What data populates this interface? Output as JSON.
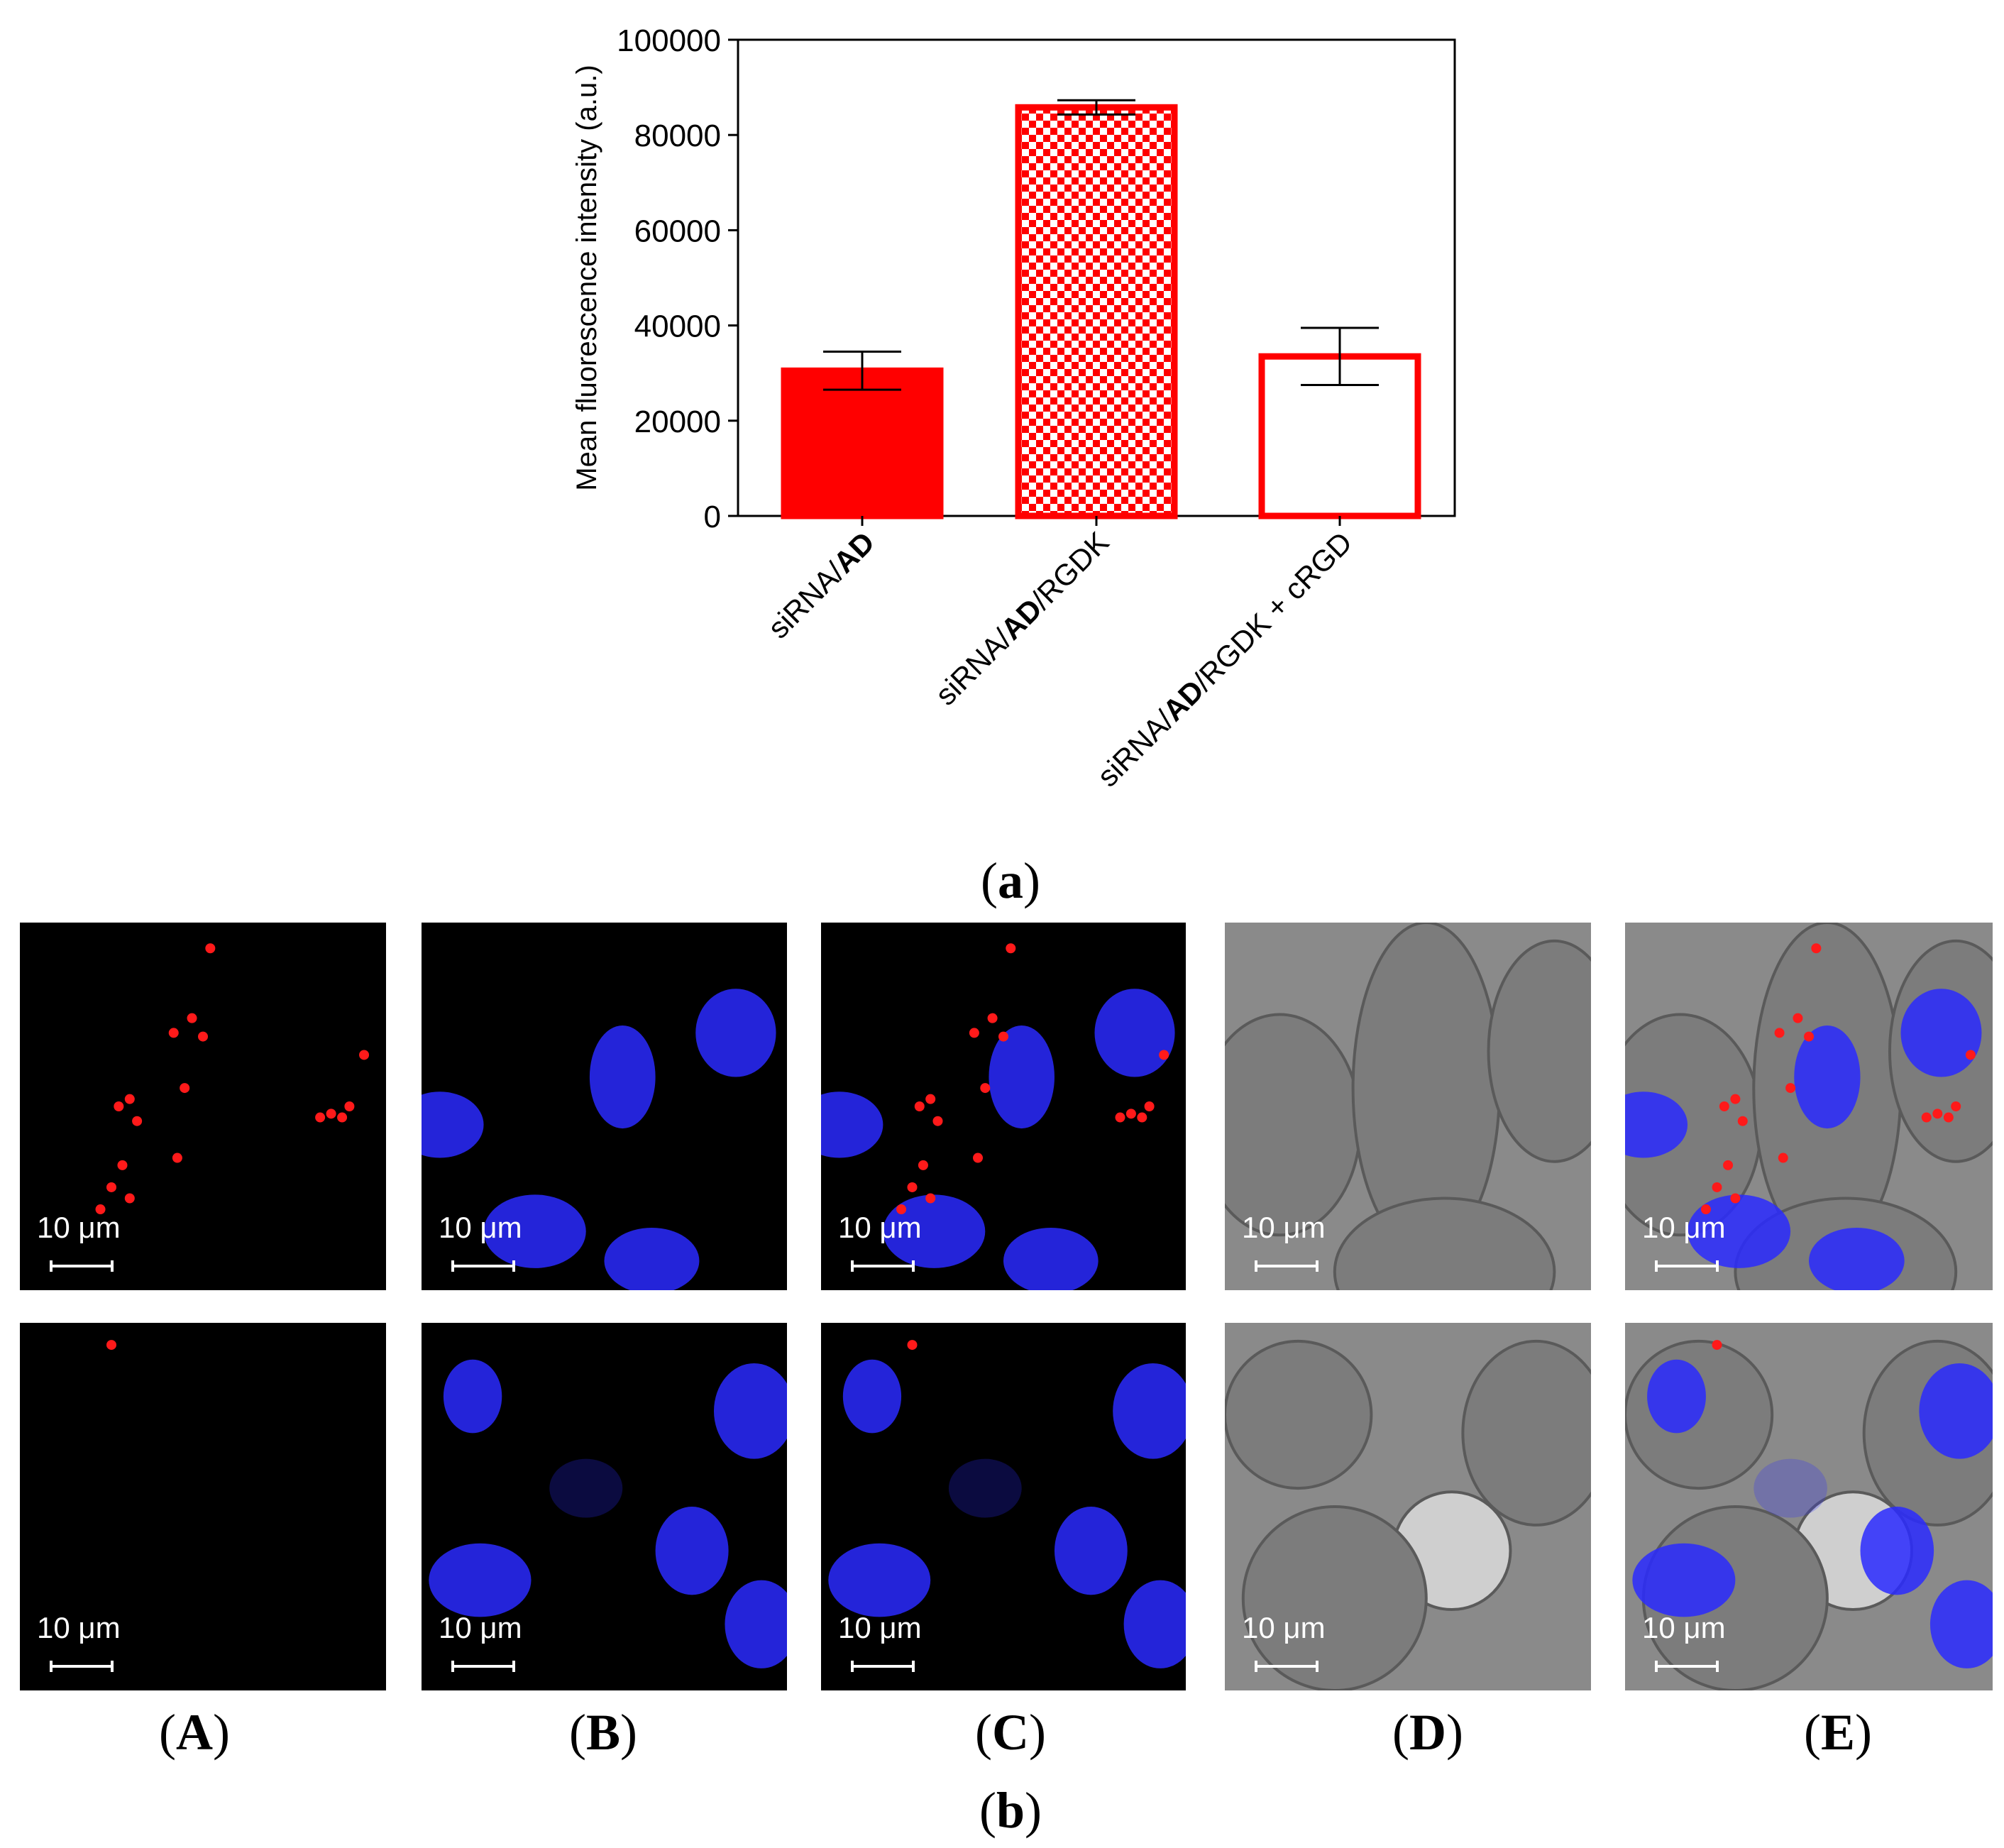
{
  "chart_data": {
    "type": "bar",
    "ylabel": "Mean fluorescence intensity (a.u.)",
    "ylim": [
      0,
      100000
    ],
    "yticks": [
      "0",
      "20000",
      "40000",
      "60000",
      "80000",
      "100000"
    ],
    "categories": [
      {
        "pre": "siRNA/",
        "bold": "AD",
        "post": ""
      },
      {
        "pre": "siRNA/",
        "bold": "AD",
        "post": "/RGDK"
      },
      {
        "pre": "siRNA/",
        "bold": "AD",
        "post": "/RGDK + cRGD"
      }
    ],
    "values": [
      30500,
      85800,
      33500
    ],
    "errors": [
      4000,
      1500,
      6000
    ],
    "fills": [
      "solid",
      "checker",
      "hollow"
    ],
    "bar_color": "#ff0000"
  },
  "captions": {
    "part_a": {
      "open": "(",
      "letter": "a",
      "close": ")"
    },
    "part_b": {
      "open": "(",
      "letter": "b",
      "close": ")"
    },
    "panels": [
      {
        "open": "(",
        "letter": "A",
        "close": ")"
      },
      {
        "open": "(",
        "letter": "B",
        "close": ")"
      },
      {
        "open": "(",
        "letter": "C",
        "close": ")"
      },
      {
        "open": "(",
        "letter": "D",
        "close": ")"
      },
      {
        "open": "(",
        "letter": "E",
        "close": ")"
      }
    ]
  },
  "scale_label": "10 μm",
  "colors": {
    "nucleus": "#2a2aff",
    "spots": "#ff1a1a",
    "brightfield": "#8a8a8a"
  }
}
